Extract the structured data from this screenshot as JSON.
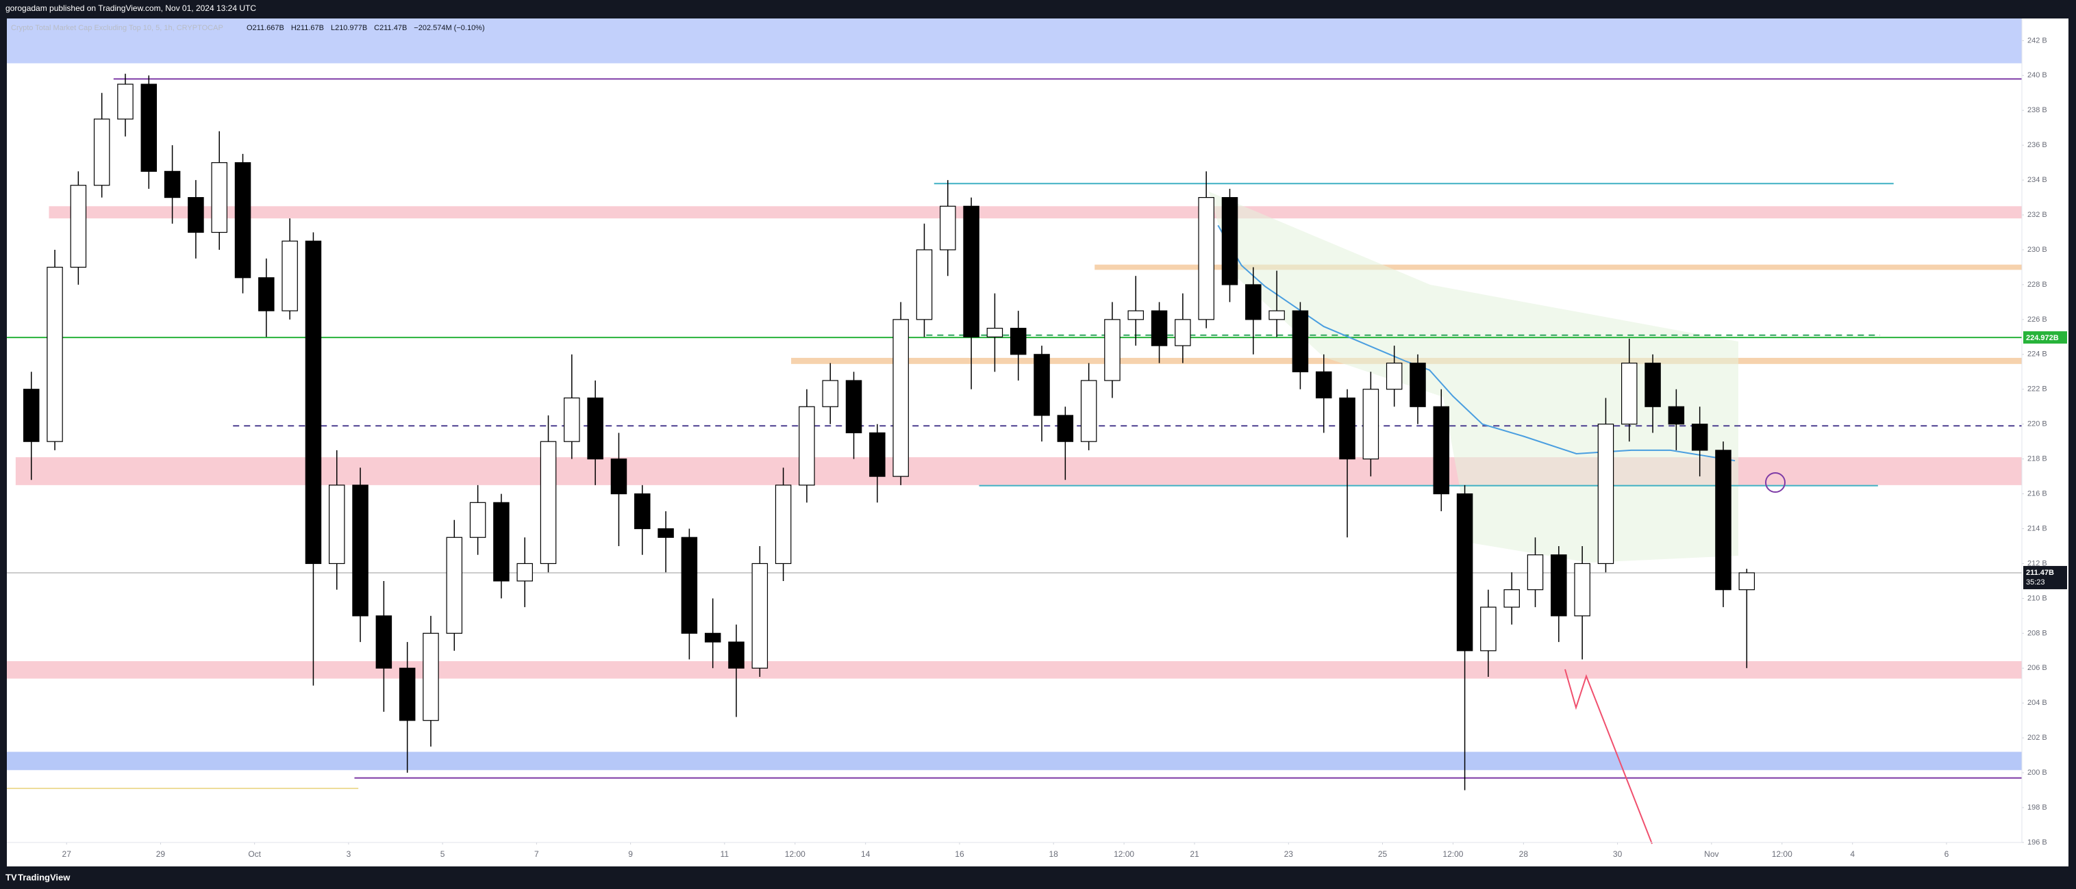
{
  "chart_data": {
    "type": "candlestick",
    "published": "gorogadam published on TradingView.com, Nov 01, 2024 13:24 UTC",
    "title": "Crypto Total Market Cap Excluding Top 10, 5, 1h, CRYPTOCAP",
    "ohlc_legend": [
      "O211.667B",
      "H211.67B",
      "L210.977B",
      "C211.47B",
      "−202.574M (−0.10%)"
    ],
    "brand": "TradingView",
    "xlim": [
      "2024-09-25T17:30",
      "2024-11-07T14:30"
    ],
    "ylim": [
      196,
      243.27
    ],
    "grid": false,
    "up_color": "#ffffff",
    "down_color": "#000000",
    "yticks": [
      {
        "value": 196,
        "label": "196 B"
      },
      {
        "value": 198,
        "label": "198 B"
      },
      {
        "value": 200,
        "label": "200 B"
      },
      {
        "value": 202,
        "label": "202 B"
      },
      {
        "value": 204,
        "label": "204 B"
      },
      {
        "value": 206,
        "label": "206 B"
      },
      {
        "value": 208,
        "label": "208 B"
      },
      {
        "value": 210,
        "label": "210 B"
      },
      {
        "value": 212,
        "label": "212 B"
      },
      {
        "value": 214,
        "label": "214 B"
      },
      {
        "value": 216,
        "label": "216 B"
      },
      {
        "value": 218,
        "label": "218 B"
      },
      {
        "value": 220,
        "label": "220 B"
      },
      {
        "value": 222,
        "label": "222 B"
      },
      {
        "value": 224,
        "label": "224 B"
      },
      {
        "value": 226,
        "label": "226 B"
      },
      {
        "value": 228,
        "label": "228 B"
      },
      {
        "value": 230,
        "label": "230 B"
      },
      {
        "value": 232,
        "label": "232 B"
      },
      {
        "value": 234,
        "label": "234 B"
      },
      {
        "value": 236,
        "label": "236 B"
      },
      {
        "value": 238,
        "label": "238 B"
      },
      {
        "value": 240,
        "label": "240 B"
      },
      {
        "value": 242,
        "label": "242 B"
      }
    ],
    "xticks": [
      {
        "value": "2024-09-27",
        "label": "27"
      },
      {
        "value": "2024-09-29",
        "label": "29"
      },
      {
        "value": "2024-10-01",
        "label": "Oct"
      },
      {
        "value": "2024-10-03",
        "label": "3"
      },
      {
        "value": "2024-10-05",
        "label": "5"
      },
      {
        "value": "2024-10-07",
        "label": "7"
      },
      {
        "value": "2024-10-09",
        "label": "9"
      },
      {
        "value": "2024-10-11",
        "label": "11"
      },
      {
        "value": "2024-10-12T12:00",
        "label": "12:00"
      },
      {
        "value": "2024-10-14",
        "label": "14"
      },
      {
        "value": "2024-10-16",
        "label": "16"
      },
      {
        "value": "2024-10-18",
        "label": "18"
      },
      {
        "value": "2024-10-19T12:00",
        "label": "12:00"
      },
      {
        "value": "2024-10-21",
        "label": "21"
      },
      {
        "value": "2024-10-23",
        "label": "23"
      },
      {
        "value": "2024-10-25",
        "label": "25"
      },
      {
        "value": "2024-10-26T12:00",
        "label": "12:00"
      },
      {
        "value": "2024-10-28",
        "label": "28"
      },
      {
        "value": "2024-10-30",
        "label": "30"
      },
      {
        "value": "2024-11-01",
        "label": "Nov"
      },
      {
        "value": "2024-11-02T12:00",
        "label": "12:00"
      },
      {
        "value": "2024-11-04",
        "label": "4"
      },
      {
        "value": "2024-11-06",
        "label": "6"
      }
    ],
    "x": [
      "2024-09-26T00:00",
      "2024-09-26T12:00",
      "2024-09-27T00:00",
      "2024-09-27T12:00",
      "2024-09-28T00:00",
      "2024-09-28T12:00",
      "2024-09-29T00:00",
      "2024-09-29T12:00",
      "2024-09-30T00:00",
      "2024-09-30T12:00",
      "2024-10-01T00:00",
      "2024-10-01T12:00",
      "2024-10-02T00:00",
      "2024-10-02T12:00",
      "2024-10-03T00:00",
      "2024-10-03T12:00",
      "2024-10-04T00:00",
      "2024-10-04T12:00",
      "2024-10-05T00:00",
      "2024-10-05T12:00",
      "2024-10-06T00:00",
      "2024-10-06T12:00",
      "2024-10-07T00:00",
      "2024-10-07T12:00",
      "2024-10-08T00:00",
      "2024-10-08T12:00",
      "2024-10-09T00:00",
      "2024-10-09T12:00",
      "2024-10-10T00:00",
      "2024-10-10T12:00",
      "2024-10-11T00:00",
      "2024-10-11T12:00",
      "2024-10-12T00:00",
      "2024-10-12T12:00",
      "2024-10-13T00:00",
      "2024-10-13T12:00",
      "2024-10-14T00:00",
      "2024-10-14T12:00",
      "2024-10-15T00:00",
      "2024-10-15T12:00",
      "2024-10-16T00:00",
      "2024-10-16T12:00",
      "2024-10-17T00:00",
      "2024-10-17T12:00",
      "2024-10-18T00:00",
      "2024-10-18T12:00",
      "2024-10-19T00:00",
      "2024-10-19T12:00",
      "2024-10-20T00:00",
      "2024-10-20T12:00",
      "2024-10-21T00:00",
      "2024-10-21T12:00",
      "2024-10-22T00:00",
      "2024-10-22T12:00",
      "2024-10-23T00:00",
      "2024-10-23T12:00",
      "2024-10-24T00:00",
      "2024-10-24T12:00",
      "2024-10-25T00:00",
      "2024-10-25T12:00",
      "2024-10-26T00:00",
      "2024-10-26T12:00",
      "2024-10-27T00:00",
      "2024-10-27T12:00",
      "2024-10-28T00:00",
      "2024-10-28T12:00",
      "2024-10-29T00:00",
      "2024-10-29T12:00",
      "2024-10-30T00:00",
      "2024-10-30T12:00",
      "2024-10-31T00:00",
      "2024-10-31T12:00",
      "2024-11-01T00:00",
      "2024-11-01T12:00"
    ],
    "open": [
      222,
      219,
      229,
      233.7,
      237.5,
      239.5,
      234.5,
      233,
      231,
      235,
      228.4,
      226.5,
      230.5,
      212,
      216.5,
      209,
      206,
      203,
      208,
      213.5,
      215.5,
      211,
      212,
      219,
      221.5,
      218,
      216,
      214,
      213.5,
      208,
      207.5,
      206,
      212,
      216.5,
      221,
      222.5,
      219.5,
      217,
      226,
      230,
      232.5,
      225,
      225.5,
      224,
      220.5,
      219,
      222.5,
      226,
      226.5,
      224.5,
      226,
      233,
      228,
      226,
      226.5,
      223,
      221.5,
      218,
      222,
      223.5,
      221,
      216,
      207,
      209.5,
      210.5,
      212.5,
      209,
      212,
      220,
      223.5,
      221,
      220,
      218.5,
      210.5
    ],
    "high": [
      223,
      230,
      234.5,
      239,
      240.1,
      240,
      236,
      234,
      236.8,
      235.5,
      229.5,
      231.8,
      231,
      218.5,
      217.5,
      211,
      207.5,
      209,
      214.5,
      216.5,
      216,
      213.5,
      220.5,
      224,
      222.5,
      219.5,
      216.5,
      215,
      214,
      210,
      208.5,
      213,
      217.5,
      222,
      223.5,
      223,
      220,
      227,
      231.5,
      234,
      233,
      227.5,
      226.5,
      224.5,
      221,
      223.5,
      227,
      228.5,
      227,
      227.5,
      234.5,
      233.5,
      229,
      228.8,
      227,
      224,
      222,
      223,
      224.5,
      224,
      222,
      216.5,
      210.5,
      211.5,
      213.5,
      213,
      213,
      221.5,
      224.9,
      224,
      222,
      221,
      219,
      211.7
    ],
    "low": [
      216.8,
      218.5,
      228,
      233,
      236.5,
      233.5,
      231.5,
      229.5,
      230,
      227.5,
      225,
      226,
      205,
      210.5,
      207.5,
      203.5,
      200,
      201.5,
      207,
      212.5,
      210,
      209.5,
      211.5,
      218,
      216.5,
      213,
      212.5,
      211.5,
      206.5,
      206,
      203.2,
      205.5,
      211,
      215.5,
      220,
      218,
      215.5,
      216.5,
      225,
      228.5,
      222,
      223,
      222.5,
      219,
      216.8,
      218.5,
      221.5,
      224.5,
      223.5,
      223.5,
      225.5,
      227,
      224,
      225,
      222,
      219.5,
      213.5,
      217,
      221,
      220,
      215,
      199,
      205.5,
      208.5,
      209.5,
      207.5,
      206.5,
      211.5,
      219,
      219.5,
      218.5,
      217,
      209.5,
      206
    ],
    "close": [
      219,
      229,
      233.7,
      237.5,
      239.5,
      234.5,
      233,
      231,
      235,
      228.4,
      226.5,
      230.5,
      212,
      216.5,
      209,
      206,
      203,
      208,
      213.5,
      215.5,
      211,
      212,
      219,
      221.5,
      218,
      216,
      214,
      213.5,
      208,
      207.5,
      206,
      212,
      216.5,
      221,
      222.5,
      219.5,
      217,
      226,
      230,
      232.5,
      225,
      225.5,
      224,
      220.5,
      219,
      222.5,
      226,
      226.5,
      224.5,
      226,
      233,
      228,
      226,
      226.5,
      223,
      221.5,
      218,
      222,
      223.5,
      221,
      216,
      207,
      209.5,
      210.5,
      212.5,
      209,
      212,
      220,
      223.5,
      221,
      220,
      218.5,
      210.5,
      211.47
    ],
    "zones": [
      {
        "ymin": 240.7,
        "ymax": 243.27,
        "color": "#c2d0fb"
      },
      {
        "ymin": 231.8,
        "ymax": 232.5,
        "color": "#f9ccd3",
        "from": "2024-09-26T15:00"
      },
      {
        "ymin": 228.85,
        "ymax": 229.15,
        "color": "#f6d2ad",
        "from": "2024-10-18T21:00"
      },
      {
        "ymin": 223.45,
        "ymax": 223.8,
        "color": "#f6d2ad",
        "from": "2024-10-12T10:00"
      },
      {
        "ymin": 216.5,
        "ymax": 218.1,
        "color": "#f9ccd3",
        "from": "2024-09-25T22:00"
      },
      {
        "ymin": 205.4,
        "ymax": 206.4,
        "color": "#f9ccd3"
      },
      {
        "ymin": 200.15,
        "ymax": 201.2,
        "color": "#b6c8f8"
      }
    ],
    "levels": [
      {
        "value": 239.8,
        "color": "#7e3ba6",
        "from": "2024-09-28T00:00"
      },
      {
        "value": 233.8,
        "color": "#3fb0c3",
        "from": "2024-10-15T11:00",
        "to": "2024-11-04T21:00"
      },
      {
        "value": 225.1,
        "color": "#2aa55a",
        "dash": true,
        "from": "2024-10-15T07:00",
        "to": "2024-11-04T14:00"
      },
      {
        "value": 224.972,
        "color": "#27b33a",
        "label": "224.972B"
      },
      {
        "value": 219.9,
        "color": "#4a3d8f",
        "dash": true,
        "from": "2024-09-30T13:00"
      },
      {
        "value": 216.47,
        "color": "#3fb0c3",
        "from": "2024-10-16T10:00",
        "to": "2024-11-04T13:00"
      },
      {
        "value": 199.7,
        "color": "#7e3ba6",
        "from": "2024-10-03T03:00"
      },
      {
        "value": 199.1,
        "color": "#eedc9a",
        "to": "2024-10-03T05:00"
      }
    ],
    "ma": {
      "color": "#4a9ee0",
      "x": [
        "2024-10-21T12:00",
        "2024-10-22T00:00",
        "2024-10-22T12:00",
        "2024-10-23T18:00",
        "2024-10-25T12:00",
        "2024-10-26T00:00",
        "2024-10-26T12:00",
        "2024-10-27T03:00",
        "2024-10-28T00:00",
        "2024-10-29T03:00",
        "2024-10-30T07:00",
        "2024-10-31T03:00",
        "2024-11-01T12:00"
      ],
      "values": [
        231.4,
        229.1,
        227.9,
        225.6,
        223.6,
        223.1,
        221.6,
        220,
        219.3,
        218.3,
        218.5,
        218.5,
        217.9
      ]
    },
    "last_price": {
      "value": 211.47,
      "color": "#9a9a9a",
      "label": "211.47B",
      "countdown": "35:23"
    }
  }
}
